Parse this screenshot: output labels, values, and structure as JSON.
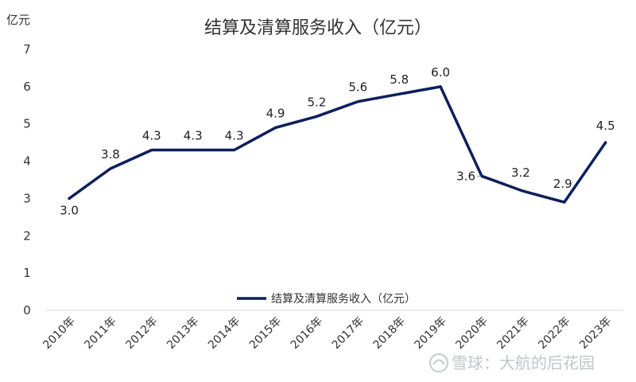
{
  "chart_data": {
    "type": "line",
    "title": "结算及清算服务收入（亿元）",
    "ylabel": "亿元",
    "xlabel": "",
    "categories": [
      "2010年",
      "2011年",
      "2012年",
      "2013年",
      "2014年",
      "2015年",
      "2016年",
      "2017年",
      "2018年",
      "2019年",
      "2020年",
      "2021年",
      "2022年",
      "2023年"
    ],
    "series": [
      {
        "name": "结算及清算服务收入（亿元）",
        "values": [
          3.0,
          3.8,
          4.3,
          4.3,
          4.3,
          4.9,
          5.2,
          5.6,
          5.8,
          6.0,
          3.6,
          3.2,
          2.9,
          4.5
        ],
        "color": "#0d1f5c"
      }
    ],
    "data_labels": [
      "3.0",
      "3.8",
      "4.3",
      "4.3",
      "4.3",
      "4.9",
      "5.2",
      "5.6",
      "5.8",
      "6.0",
      "3.6",
      "3.2",
      "2.9",
      "4.5"
    ],
    "ylim": [
      0,
      7
    ],
    "yticks": [
      "0",
      "1",
      "2",
      "3",
      "4",
      "5",
      "6",
      "7"
    ],
    "grid": false,
    "legend_position": "bottom-center"
  },
  "watermark": {
    "text": "雪球：大航的后花园"
  }
}
